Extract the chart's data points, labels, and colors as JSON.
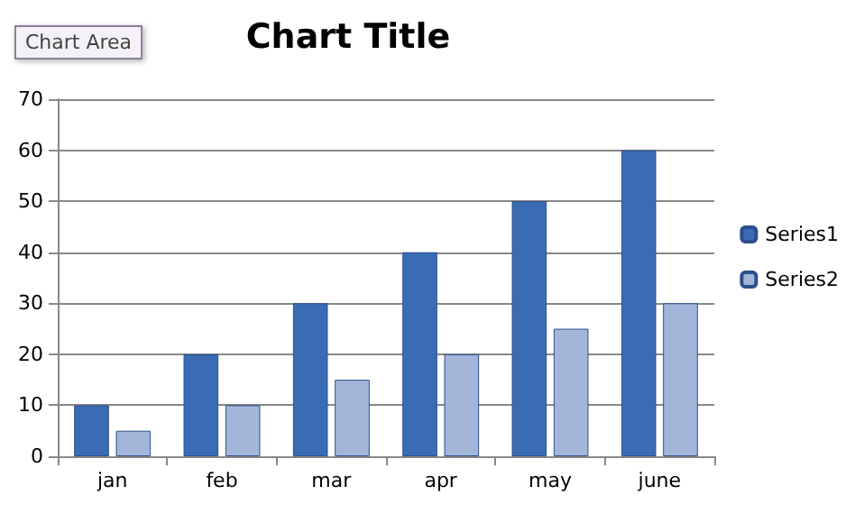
{
  "chart_data": {
    "type": "bar",
    "title": "Chart Title",
    "annotations": [
      "Chart Area"
    ],
    "categories": [
      "jan",
      "feb",
      "mar",
      "apr",
      "may",
      "june"
    ],
    "series": [
      {
        "name": "Series1",
        "color": "#3a6cb5",
        "values": [
          10,
          20,
          30,
          40,
          50,
          60
        ]
      },
      {
        "name": "Series2",
        "color": "#a3b6da",
        "values": [
          5,
          10,
          15,
          20,
          25,
          30
        ]
      }
    ],
    "ylim": [
      0,
      70
    ],
    "yticks": [
      0,
      10,
      20,
      30,
      40,
      50,
      60,
      70
    ],
    "grid": "y",
    "legend": "right"
  }
}
